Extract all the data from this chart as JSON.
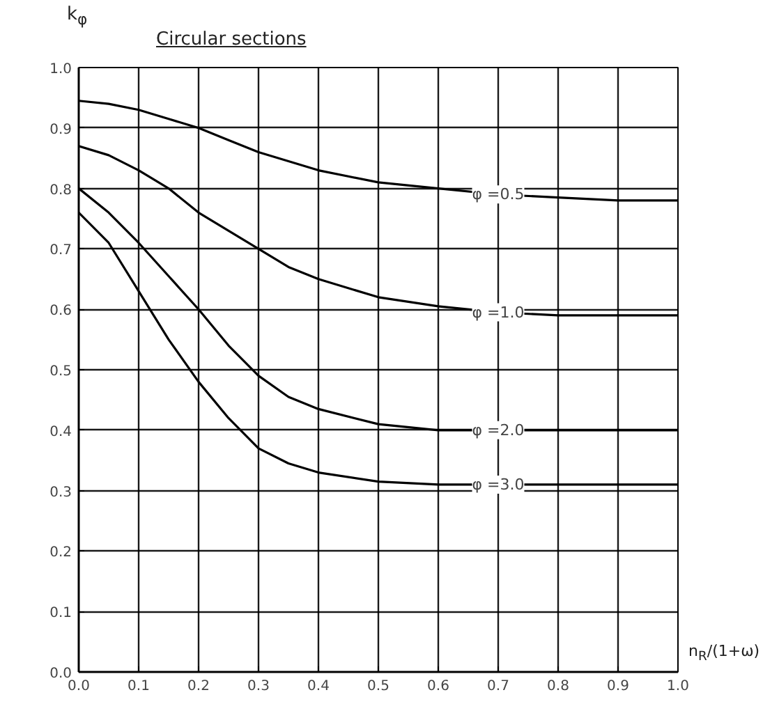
{
  "chart_data": {
    "type": "line",
    "title": "Circular sections",
    "xlabel": "n$_{R}$/(1+ω)",
    "ylabel": "k$_{φ}$",
    "x": [
      0,
      0.05,
      0.1,
      0.15,
      0.2,
      0.25,
      0.3,
      0.35,
      0.4,
      0.5,
      0.6,
      0.7,
      0.8,
      0.9,
      1.0
    ],
    "series": [
      {
        "name": "φ =0.5",
        "color": "#000000",
        "values": [
          0.945,
          0.94,
          0.93,
          0.915,
          0.9,
          0.88,
          0.86,
          0.845,
          0.83,
          0.81,
          0.8,
          0.79,
          0.785,
          0.78,
          0.78
        ]
      },
      {
        "name": "φ =1.0",
        "color": "#000000",
        "values": [
          0.87,
          0.855,
          0.83,
          0.8,
          0.76,
          0.73,
          0.7,
          0.67,
          0.65,
          0.62,
          0.605,
          0.595,
          0.59,
          0.59,
          0.59
        ]
      },
      {
        "name": "φ =2.0",
        "color": "#000000",
        "values": [
          0.8,
          0.76,
          0.71,
          0.655,
          0.6,
          0.54,
          0.49,
          0.455,
          0.435,
          0.41,
          0.4,
          0.4,
          0.4,
          0.4,
          0.4
        ]
      },
      {
        "name": "φ =3.0",
        "color": "#000000",
        "values": [
          0.76,
          0.71,
          0.63,
          0.55,
          0.48,
          0.42,
          0.37,
          0.345,
          0.33,
          0.315,
          0.31,
          0.31,
          0.31,
          0.31,
          0.31
        ]
      }
    ],
    "xlim": [
      0,
      1
    ],
    "ylim": [
      0,
      1
    ],
    "xticks": [
      {
        "value": 0,
        "label": "0.0"
      },
      {
        "value": 0.1,
        "label": "0.1"
      },
      {
        "value": 0.2,
        "label": "0.2"
      },
      {
        "value": 0.3,
        "label": "0.3"
      },
      {
        "value": 0.4,
        "label": "0.4"
      },
      {
        "value": 0.5,
        "label": "0.5"
      },
      {
        "value": 0.6,
        "label": "0.6"
      },
      {
        "value": 0.7,
        "label": "0.7"
      },
      {
        "value": 0.8,
        "label": "0.8"
      },
      {
        "value": 0.9,
        "label": "0.9"
      },
      {
        "value": 1,
        "label": "1.0"
      }
    ],
    "yticks": [
      {
        "value": 0,
        "label": "0.0"
      },
      {
        "value": 0.1,
        "label": "0.1"
      },
      {
        "value": 0.2,
        "label": "0.2"
      },
      {
        "value": 0.3,
        "label": "0.3"
      },
      {
        "value": 0.4,
        "label": "0.4"
      },
      {
        "value": 0.5,
        "label": "0.5"
      },
      {
        "value": 0.6,
        "label": "0.6"
      },
      {
        "value": 0.7,
        "label": "0.7"
      },
      {
        "value": 0.8,
        "label": "0.8"
      },
      {
        "value": 0.9,
        "label": "0.9"
      },
      {
        "value": 1,
        "label": "1.0"
      }
    ],
    "grid": true,
    "marker": "none",
    "line_style": "solid"
  }
}
